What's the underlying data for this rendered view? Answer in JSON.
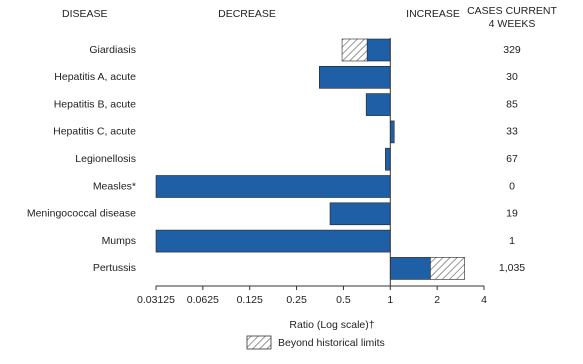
{
  "chart_data": {
    "type": "bar",
    "orientation": "horizontal",
    "log_scale": true,
    "header_labels": {
      "category": "DISEASE",
      "decrease": "DECREASE",
      "increase": "INCREASE",
      "cases_line1": "CASES CURRENT",
      "cases_line2": "4 WEEKS"
    },
    "categories": [
      "Giardiasis",
      "Hepatitis A, acute",
      "Hepatitis B, acute",
      "Hepatitis C, acute",
      "Legionellosis",
      "Measles*",
      "Meningococcal disease",
      "Mumps",
      "Pertussis"
    ],
    "values": [
      0.49,
      0.35,
      0.7,
      1.06,
      0.93,
      0.03125,
      0.41,
      0.03125,
      3.0
    ],
    "historical_limits": [
      0.71,
      null,
      null,
      null,
      null,
      null,
      null,
      null,
      1.81
    ],
    "color": "#1f5fa5",
    "cases": [
      329,
      30,
      85,
      33,
      67,
      0,
      19,
      1,
      1035
    ],
    "cases_labels": [
      "329",
      "30",
      "85",
      "33",
      "67",
      "0",
      "19",
      "1",
      "1,035"
    ],
    "xlim": [
      0.03125,
      4
    ],
    "xticks": [
      0.03125,
      0.0625,
      0.125,
      0.25,
      0.5,
      1,
      2,
      4
    ],
    "xlabel": "Ratio (Log scale)†",
    "legend": {
      "label": "Beyond historical limits"
    }
  }
}
